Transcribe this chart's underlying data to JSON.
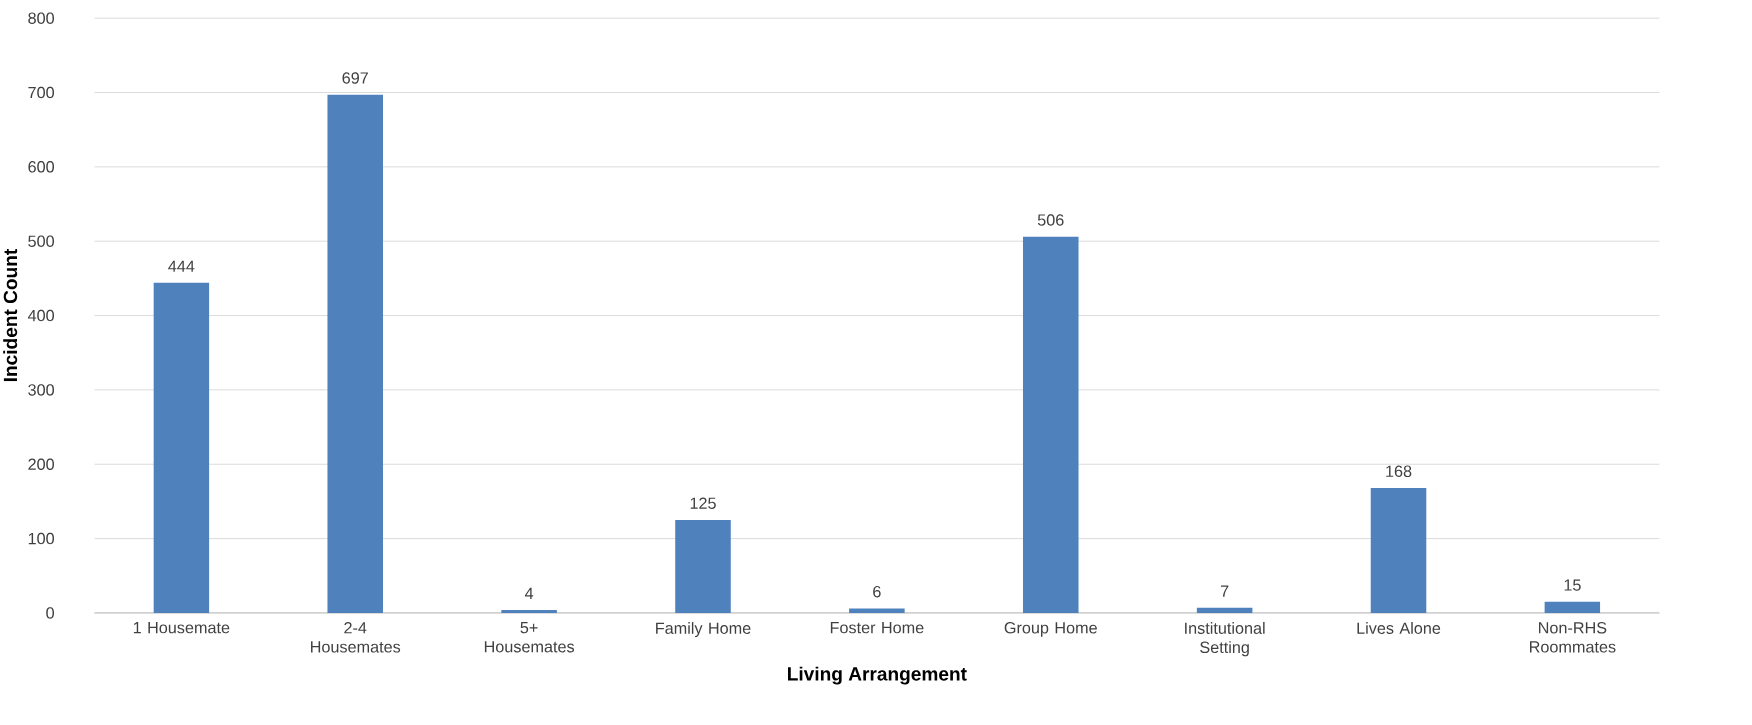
{
  "chart_data": {
    "type": "bar",
    "xlabel": "Living Arrangement",
    "ylabel": "Incident Count",
    "categories": [
      "1 Housemate",
      "2-4 Housemates",
      "5+ Housemates",
      "Family Home",
      "Foster Home",
      "Group Home",
      "Institutional Setting",
      "Lives Alone",
      "Non-RHS Roommates"
    ],
    "values": [
      444,
      697,
      4,
      125,
      6,
      506,
      7,
      168,
      15
    ],
    "color": "#4f81bd",
    "ylim": [
      0,
      800
    ],
    "yticks": [
      0,
      100,
      200,
      300,
      400,
      500,
      600,
      700,
      800
    ],
    "grid": "y",
    "data_labels": true
  }
}
